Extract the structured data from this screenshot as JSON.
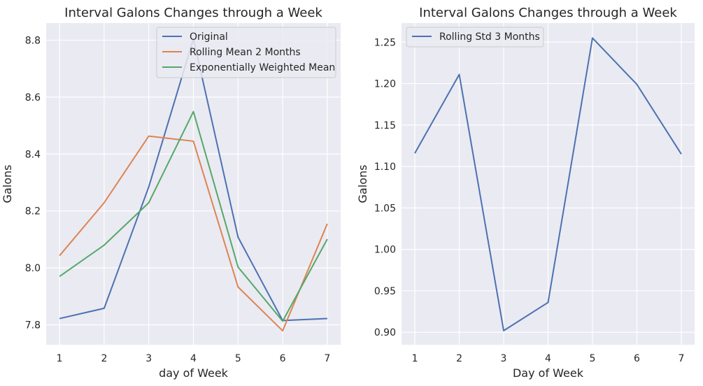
{
  "chart_data": [
    {
      "type": "line",
      "title": "Interval Galons Changes through a Week",
      "xlabel": "day of Week",
      "ylabel": "Galons",
      "x": [
        1,
        2,
        3,
        4,
        5,
        6,
        7
      ],
      "xticks": [
        "1",
        "2",
        "3",
        "4",
        "5",
        "6",
        "7"
      ],
      "xlim": [
        0.7,
        7.3
      ],
      "ylim": [
        7.73,
        8.86
      ],
      "yticks": [
        "7.8",
        "8.0",
        "8.2",
        "8.4",
        "8.6",
        "8.8"
      ],
      "ytick_values": [
        7.8,
        8.0,
        8.2,
        8.4,
        8.6,
        8.8
      ],
      "grid": true,
      "legend_position": "top-right",
      "series": [
        {
          "name": "Original",
          "color": "#4c72b0",
          "values": [
            7.822,
            7.858,
            8.285,
            8.805,
            8.108,
            7.815,
            7.822
          ]
        },
        {
          "name": "Rolling Mean 2 Months",
          "color": "#dd8452",
          "values": [
            8.043,
            8.229,
            8.463,
            8.445,
            7.933,
            7.779,
            8.155
          ]
        },
        {
          "name": "Exponentially Weighted Mean",
          "color": "#55a868",
          "values": [
            7.97,
            8.08,
            8.229,
            8.549,
            8.003,
            7.813,
            8.101
          ]
        }
      ]
    },
    {
      "type": "line",
      "title": "Interval Galons Changes through a Week",
      "xlabel": "Day of Week",
      "ylabel": "Galons",
      "x": [
        1,
        2,
        3,
        4,
        5,
        6,
        7
      ],
      "xticks": [
        "1",
        "2",
        "3",
        "4",
        "5",
        "6",
        "7"
      ],
      "xlim": [
        0.7,
        7.3
      ],
      "ylim": [
        0.885,
        1.273
      ],
      "yticks": [
        "0.90",
        "0.95",
        "1.00",
        "1.05",
        "1.10",
        "1.15",
        "1.20",
        "1.25"
      ],
      "ytick_values": [
        0.9,
        0.95,
        1.0,
        1.05,
        1.1,
        1.15,
        1.2,
        1.25
      ],
      "grid": true,
      "legend_position": "top-left",
      "series": [
        {
          "name": "Rolling Std 3 Months",
          "color": "#4c72b0",
          "values": [
            1.116,
            1.211,
            0.902,
            0.936,
            1.255,
            1.199,
            1.115
          ]
        }
      ]
    }
  ]
}
